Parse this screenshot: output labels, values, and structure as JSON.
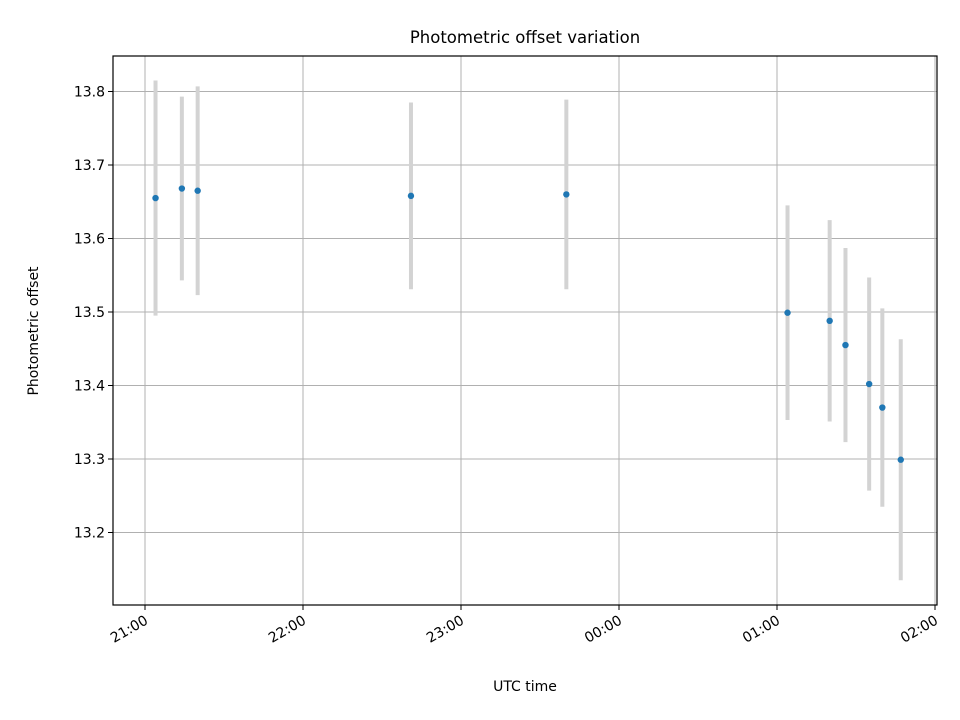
{
  "chart_data": {
    "type": "scatter",
    "title": "Photometric offset variation",
    "xlabel": "UTC time",
    "ylabel": "Photometric offset",
    "x_tick_labels": [
      "21:00",
      "22:00",
      "23:00",
      "00:00",
      "01:00",
      "02:00"
    ],
    "y_tick_labels": [
      "13.2",
      "13.3",
      "13.4",
      "13.5",
      "13.6",
      "13.7",
      "13.8"
    ],
    "grid": true,
    "marker_color": "#1f77b4",
    "errorbar_color": "#d3d3d3",
    "series": [
      {
        "x": [
          "21:04",
          "21:14",
          "21:20",
          "22:41",
          "23:40",
          "01:04",
          "01:20",
          "01:26",
          "01:35",
          "01:40",
          "01:47"
        ],
        "y": [
          13.655,
          13.668,
          13.665,
          13.658,
          13.66,
          13.499,
          13.488,
          13.455,
          13.402,
          13.37,
          13.299
        ],
        "yerr": [
          0.16,
          0.125,
          0.142,
          0.127,
          0.129,
          0.146,
          0.137,
          0.132,
          0.145,
          0.135,
          0.164
        ]
      }
    ]
  }
}
